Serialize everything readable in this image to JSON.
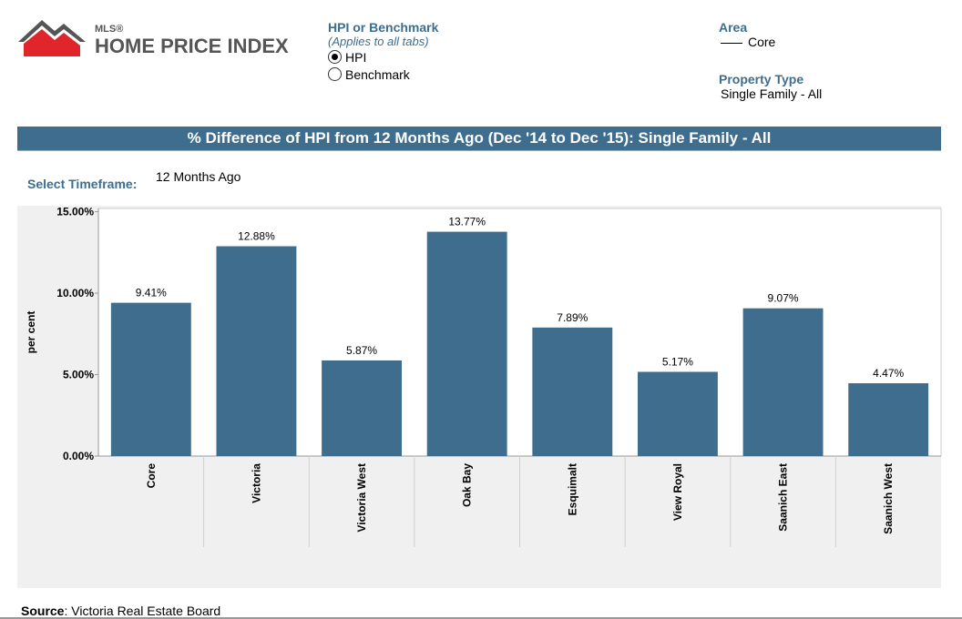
{
  "logo": {
    "small": "MLS®",
    "big": "HOME PRICE INDEX"
  },
  "hpi_selector": {
    "title": "HPI or Benchmark",
    "note": "(Applies to all tabs)",
    "options": [
      {
        "label": "HPI",
        "selected": true
      },
      {
        "label": "Benchmark",
        "selected": false
      }
    ]
  },
  "area": {
    "title": "Area",
    "legend_item": "Core"
  },
  "property_type": {
    "title": "Property Type",
    "value": "Single Family - All"
  },
  "banner_title": "% Difference of HPI from 12 Months Ago (Dec '14 to Dec '15): Single Family - All",
  "timeframe": {
    "label": "Select Timeframe:",
    "value": "12 Months Ago"
  },
  "source": {
    "label": "Source",
    "value": ": Victoria Real Estate Board"
  },
  "colors": {
    "bar": "#3e6d8e",
    "accent": "#3e6d8e",
    "plot_bg": "#f0f0f0"
  },
  "chart_data": {
    "type": "bar",
    "categories": [
      "Core",
      "Victoria",
      "Victoria West",
      "Oak Bay",
      "Esquimalt",
      "View Royal",
      "Saanich East",
      "Saanich West"
    ],
    "values": [
      9.41,
      12.88,
      5.87,
      13.77,
      7.89,
      5.17,
      9.07,
      4.47
    ],
    "value_labels": [
      "9.41%",
      "12.88%",
      "5.87%",
      "13.77%",
      "7.89%",
      "5.17%",
      "9.07%",
      "4.47%"
    ],
    "ylabel": "per cent",
    "yticks": [
      0,
      5,
      10,
      15
    ],
    "ytick_labels": [
      "0.00%",
      "5.00%",
      "10.00%",
      "15.00%"
    ],
    "ylim": [
      0,
      15.2
    ],
    "grid": false,
    "legend": "none"
  }
}
